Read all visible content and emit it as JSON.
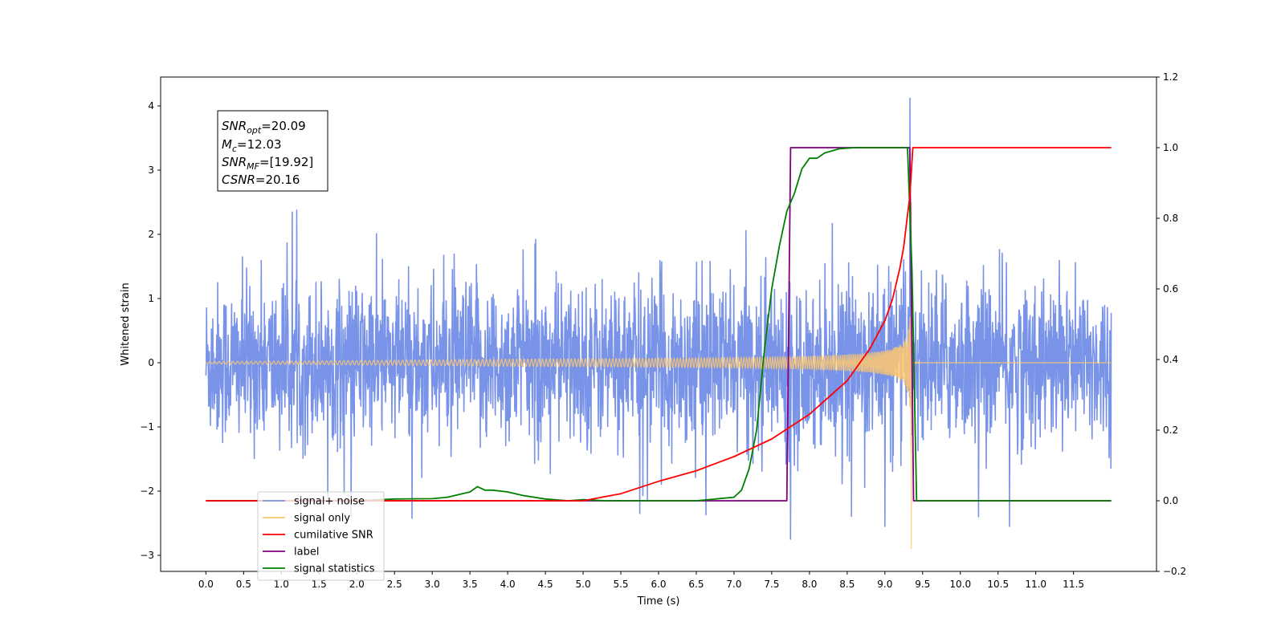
{
  "chart_data": {
    "type": "line",
    "xlabel": "Time (s)",
    "ylabel": "Whitened strain",
    "xlim": [
      -0.6,
      12.6
    ],
    "ylim_left": [
      -3.25,
      4.45
    ],
    "ylim_right": [
      -0.2,
      1.2
    ],
    "x_ticks": [
      "0.0",
      "0.5",
      "1.0",
      "1.5",
      "2.0",
      "2.5",
      "3.0",
      "3.5",
      "4.0",
      "4.5",
      "5.0",
      "5.5",
      "6.0",
      "6.5",
      "7.0",
      "7.5",
      "8.0",
      "8.5",
      "9.0",
      "9.5",
      "10.0",
      "10.5",
      "11.0",
      "11.5"
    ],
    "y_ticks_left": [
      "−3",
      "−2",
      "−1",
      "0",
      "1",
      "2",
      "3",
      "4"
    ],
    "y_ticks_right": [
      "−0.2",
      "0.0",
      "0.2",
      "0.4",
      "0.6",
      "0.8",
      "1.0",
      "1.2"
    ],
    "annotation": {
      "line1_sym": "SNR",
      "line1_sub": "opt",
      "line1_val": "=20.09",
      "line2_sym": "M",
      "line2_sub": "c",
      "line2_val": "=12.03",
      "line3_sym": "SNR",
      "line3_sub": "MF",
      "line3_val": "=[19.92]",
      "line4_sym": "CSNR",
      "line4_val": "=20.16"
    },
    "legend": {
      "placement": "lower-left",
      "entries": [
        {
          "label": "signal+ noise",
          "color": "#7893e7"
        },
        {
          "label": "signal only",
          "color": "#ffc86e"
        },
        {
          "label": "cumilative SNR",
          "color": "#ff0000"
        },
        {
          "label": "label",
          "color": "#800080"
        },
        {
          "label": "signal statistics",
          "color": "#008000"
        }
      ]
    },
    "series": [
      {
        "name": "signal+ noise",
        "axis": "left",
        "color": "#7893e7",
        "description_of_values": "whitened strain, noise amplitude ~±1.3 with spikes to ±2.5",
        "x_range": [
          0.0,
          12.0
        ],
        "notable_points": [
          [
            9.33,
            4.12
          ],
          [
            7.75,
            -2.75
          ],
          [
            9.0,
            -2.55
          ],
          [
            5.75,
            -2.35
          ],
          [
            10.65,
            -2.55
          ]
        ]
      },
      {
        "name": "signal only",
        "axis": "left",
        "color": "#ffc86e",
        "chirp_start": 0.0,
        "chirp_end": 9.35,
        "peak_amplitude": 1.7,
        "notable_points": [
          [
            9.35,
            -2.9
          ],
          [
            9.35,
            2.5
          ]
        ]
      },
      {
        "name": "cumilative SNR",
        "axis": "right",
        "color": "#ff0000",
        "x": [
          0.0,
          5.0,
          5.5,
          6.0,
          6.5,
          7.0,
          7.5,
          8.0,
          8.5,
          8.8,
          9.0,
          9.1,
          9.2,
          9.25,
          9.3,
          9.33,
          9.35,
          9.37,
          12.0
        ],
        "y": [
          0.0,
          0.0,
          0.02,
          0.055,
          0.085,
          0.125,
          0.175,
          0.245,
          0.34,
          0.43,
          0.51,
          0.57,
          0.66,
          0.72,
          0.81,
          0.86,
          0.93,
          1.0,
          1.0
        ]
      },
      {
        "name": "label",
        "axis": "right",
        "color": "#800080",
        "x": [
          0.0,
          7.7,
          7.75,
          9.33,
          9.38,
          12.0
        ],
        "y": [
          0.0,
          0.0,
          1.0,
          1.0,
          0.0,
          0.0
        ]
      },
      {
        "name": "signal statistics",
        "axis": "right",
        "color": "#008000",
        "x": [
          0.0,
          2.0,
          2.5,
          3.0,
          3.2,
          3.5,
          3.6,
          3.7,
          3.8,
          4.0,
          4.2,
          4.5,
          4.8,
          5.0,
          5.3,
          6.5,
          7.0,
          7.1,
          7.2,
          7.3,
          7.4,
          7.5,
          7.6,
          7.7,
          7.8,
          7.9,
          8.0,
          8.1,
          8.2,
          8.4,
          8.6,
          9.0,
          9.3,
          9.36,
          9.42,
          12.0
        ],
        "y": [
          0.0,
          0.0,
          0.005,
          0.006,
          0.01,
          0.025,
          0.04,
          0.03,
          0.03,
          0.025,
          0.015,
          0.005,
          0.0,
          0.003,
          0.0,
          0.0,
          0.01,
          0.03,
          0.09,
          0.2,
          0.42,
          0.6,
          0.72,
          0.82,
          0.87,
          0.94,
          0.97,
          0.97,
          0.985,
          0.997,
          1.0,
          1.0,
          1.0,
          0.65,
          0.0,
          0.0
        ]
      }
    ]
  }
}
